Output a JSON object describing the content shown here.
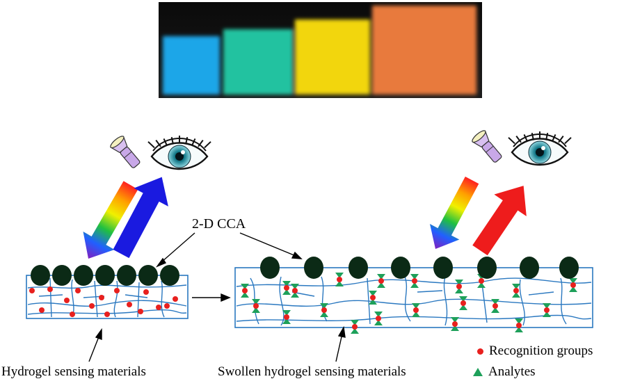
{
  "photo": {
    "swatches": [
      "#1aa6e8",
      "#20c2a0",
      "#f2d60a",
      "#e87a3c"
    ],
    "background": "#141414"
  },
  "labels": {
    "cca": "2-D CCA",
    "hydrogel": "Hydrogel sensing materials",
    "swollen": "Swollen hydrogel sensing materials"
  },
  "legend": {
    "recognition": "Recognition groups",
    "analytes": "Analytes"
  },
  "colors": {
    "particle": "#0b2a16",
    "network": "#2a78c0",
    "recognition": "#e8201e",
    "analyte": "#1ea05a",
    "reflect_blue": "#1a1ae0",
    "reflect_red": "#ee1c1c"
  },
  "icons": [
    "flashlight-icon",
    "eye-icon"
  ]
}
